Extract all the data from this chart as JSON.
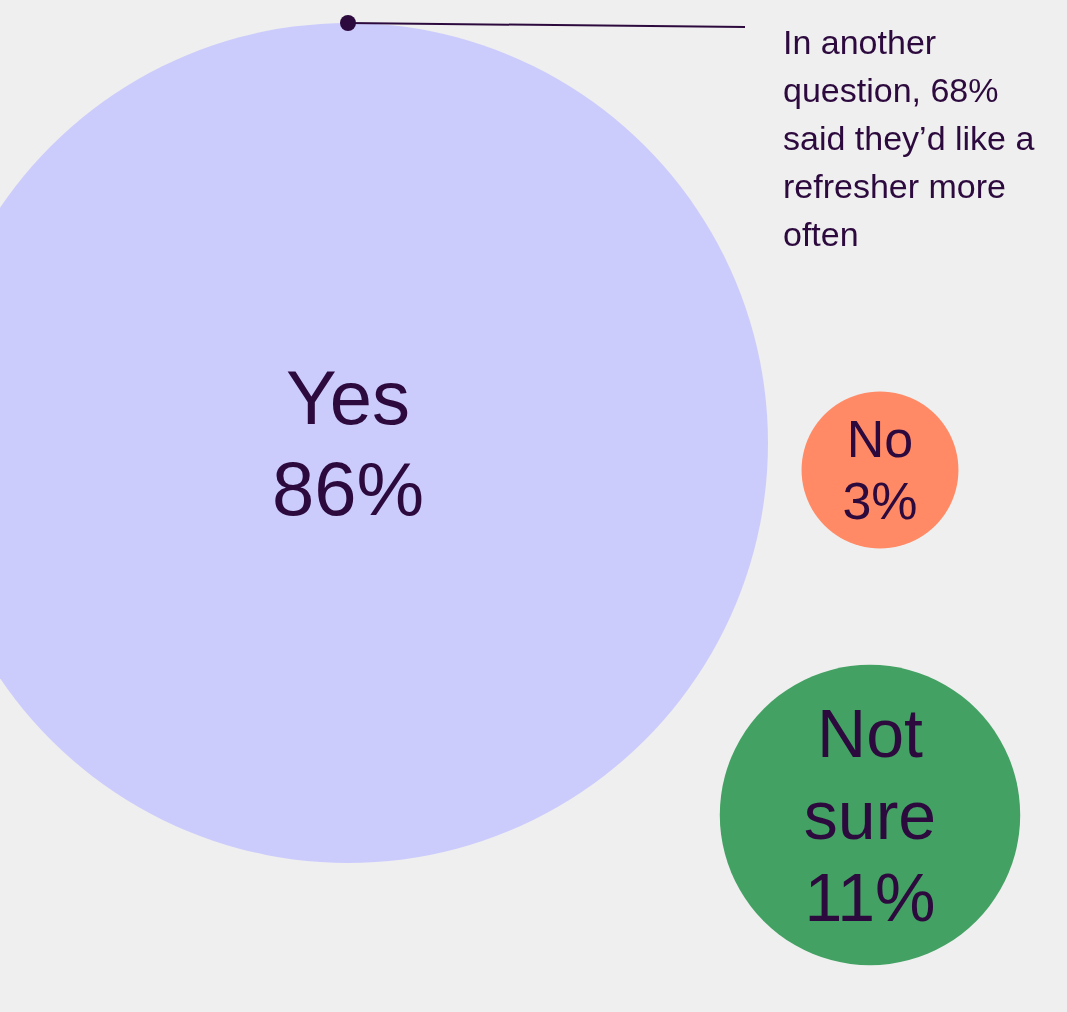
{
  "chart_data": {
    "type": "other",
    "categories": [
      "Yes",
      "No",
      "Not sure"
    ],
    "values": [
      86,
      3,
      11
    ],
    "value_labels": [
      "86%",
      "3%",
      "11%"
    ],
    "colors": [
      "#ccccfc",
      "#ff8a65",
      "#43a163"
    ],
    "annotations": [
      "In another question, 68% said they’d like a refresher more often"
    ]
  }
}
